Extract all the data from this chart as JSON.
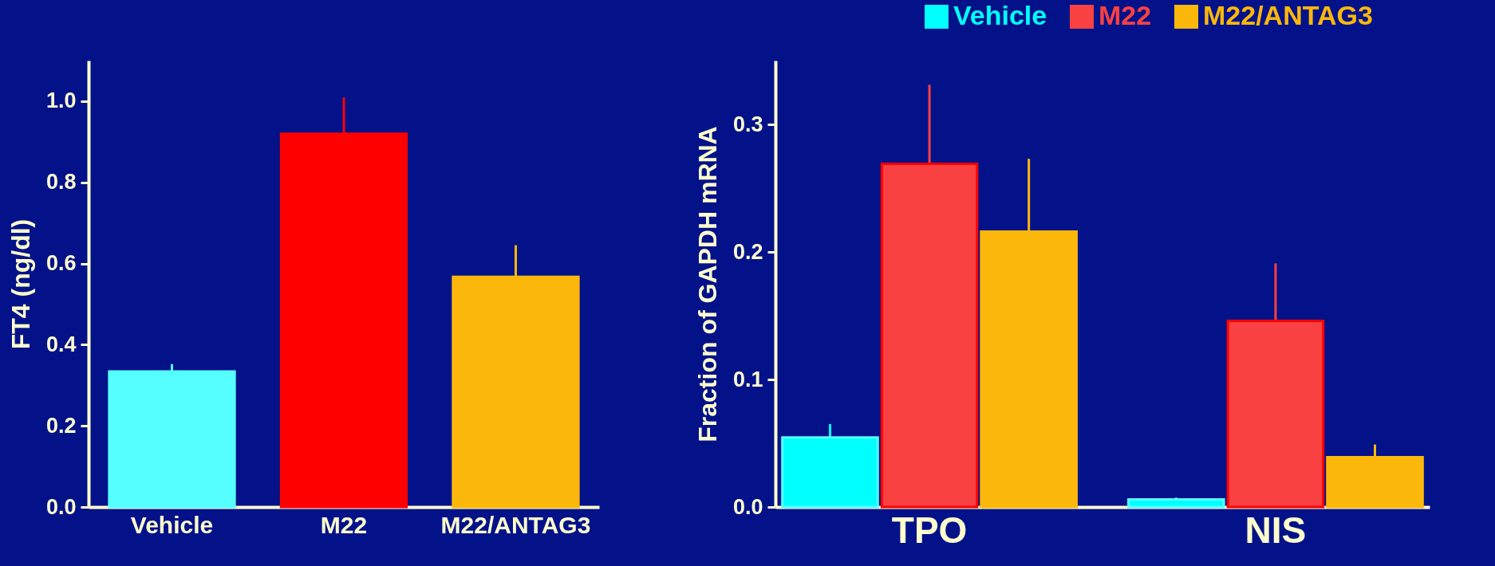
{
  "chart_data": [
    {
      "type": "bar",
      "ylabel": "FT4 (ng/dl)",
      "categories": [
        "Vehicle",
        "M22",
        "M22/ANTAG3"
      ],
      "values": [
        0.334,
        0.92,
        0.567
      ],
      "colors": [
        "#55ffff",
        "#ff0000",
        "#fbb80b"
      ],
      "errors": [
        [
          0.334,
          0.352
        ],
        [
          0.92,
          1.009
        ],
        [
          0.567,
          0.645
        ]
      ],
      "ylim": [
        0,
        1.1
      ],
      "yticks": [
        {
          "value": 0,
          "label": "0.0"
        },
        {
          "value": 0.2,
          "label": "0.2"
        },
        {
          "value": 0.4,
          "label": "0.4"
        },
        {
          "value": 0.6,
          "label": "0.6"
        },
        {
          "value": 0.8,
          "label": "0.8"
        },
        {
          "value": 1,
          "label": "1.0"
        }
      ],
      "grid": false
    },
    {
      "type": "bar",
      "ylabel": "Fraction of GAPDH mRNA",
      "categories": [
        "TPO",
        "NIS"
      ],
      "legend": "top right",
      "grid": false,
      "series": [
        {
          "name": "Vehicle",
          "color": "#00ffff",
          "values": [
            0.0546,
            0.006
          ],
          "errors": [
            [
              0.0546,
              0.065
            ],
            [
              0.006,
              0.0075
            ]
          ]
        },
        {
          "name": "M22",
          "color": "#f94141",
          "values": [
            0.269,
            0.146
          ],
          "errors": [
            [
              0.269,
              0.331
            ],
            [
              0.146,
              0.191
            ]
          ]
        },
        {
          "name": "M22/ANTAG3",
          "color": "#fbb80b",
          "values": [
            0.216,
            0.039
          ],
          "errors": [
            [
              0.216,
              0.273
            ],
            [
              0.039,
              0.049
            ]
          ]
        }
      ],
      "ylim": [
        0,
        0.35
      ],
      "yticks": [
        {
          "value": 0,
          "label": "0.0"
        },
        {
          "value": 0.1,
          "label": "0.1"
        },
        {
          "value": 0.2,
          "label": "0.2"
        },
        {
          "value": 0.3,
          "label": "0.3"
        }
      ]
    }
  ]
}
